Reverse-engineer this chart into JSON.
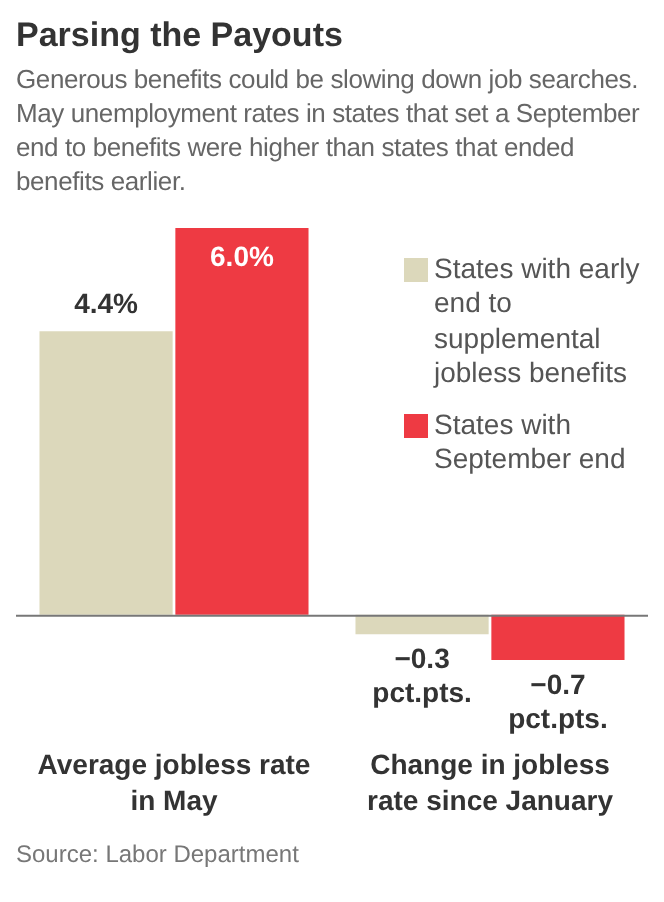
{
  "chart_data": {
    "type": "bar",
    "title": "Parsing the Payouts",
    "subtitle": "Generous benefits could be slowing down job searches. May unemployment rates in states that set a September end to benefits were higher than states that ended benefits earlier.",
    "categories": [
      "Average jobless rate in May",
      "Change in jobless rate since January"
    ],
    "series": [
      {
        "name": "States with early end to supplemental jobless benefits",
        "color": "#dcd8bb",
        "values": [
          4.4,
          -0.3
        ],
        "value_labels": [
          "4.4%",
          "−0.3 pct.pts."
        ]
      },
      {
        "name": "States with September end",
        "color": "#ee3a43",
        "values": [
          6.0,
          -0.7
        ],
        "value_labels": [
          "6.0%",
          "−0.7 pct.pts."
        ]
      }
    ],
    "legend": "top right",
    "grid": false,
    "tick_labels": "x",
    "annotations": [
      "Source: Labor Department"
    ]
  }
}
